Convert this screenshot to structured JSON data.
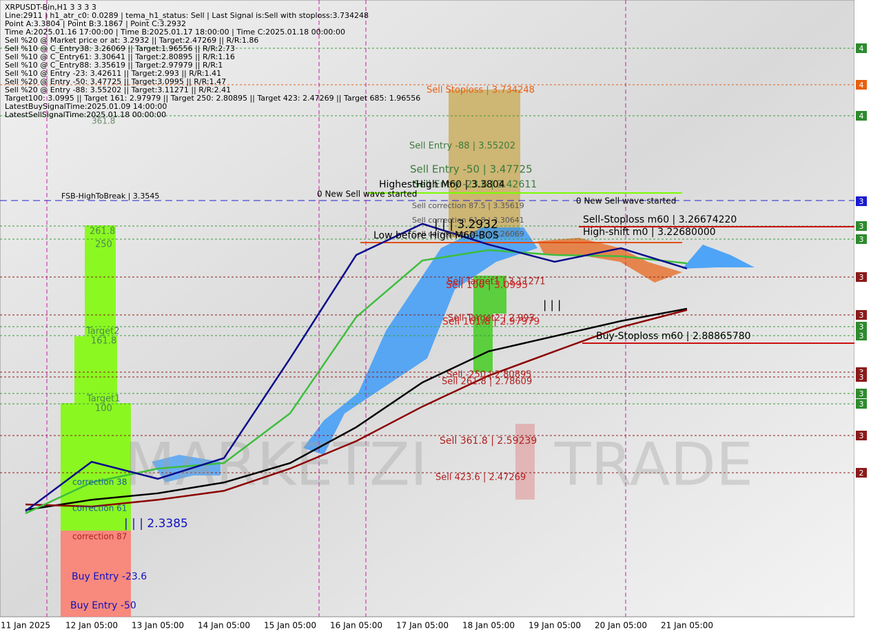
{
  "chart_data": {
    "type": "line",
    "info_lines": [
      "XRPUSDT-Bin,H1  3 3 3 3",
      "Line:2911 | h1_atr_c0: 0.0289 | tema_h1_status: Sell | Last Signal is:Sell with stoploss:3.734248",
      "Point A:3.3804 | Point B:3.1867 | Point C:3.2932",
      "Time A:2025.01.16 17:00:00 | Time B:2025.01.17 18:00:00 | Time C:2025.01.18 00:00:00",
      "Sell %20 @ Market price or at: 3.2932 || Target:2.47269 || R/R:1.86",
      "Sell %10 @ C_Entry38: 3.26069 || Target:1.96556 || R/R:2.73",
      "Sell %10 @ C_Entry61: 3.30641 || Target:2.80895 || R/R:1.16",
      "Sell %10 @ C_Entry88: 3.35619 || Target:2.97979 || R/R:1",
      "Sell %10 @ Entry -23: 3.42611 || Target:2.993 || R/R:1.41",
      "Sell %20 @ Entry -50: 3.47725 || Target:3.0995 || R/R:1.47",
      "Sell %20 @ Entry -88: 3.55202 || Target:3.11271 || R/R:2.41",
      "Target100: 3.0995 || Target 161: 2.97979 || Target 250: 2.80895 || Target 423: 2.47269 || Target 685: 1.96556",
      "LatestBuySignalTime:2025.01.09 14:00:00",
      "LatestSellSignalTime:2025.01.18 00:00:00"
    ],
    "watermark": [
      "MARKETZI",
      "TRADE"
    ],
    "annotations": [
      "361.8",
      "Sell Stoploss | 3.734248",
      "Sell Entry -88 | 3.55202",
      "Sell Entry -50 | 3.47725",
      "Sell Entry -23.6 | 3.42611",
      "HighestHigh   M60 | 3.3804",
      "FSB-HighToBreak | 3.3545",
      "0 New Sell wave started",
      "0 New Sell wave started",
      "Sell correction 87.5 | 3.35619",
      "Sell correction 61.8 | 3.30641",
      "| | | 3.2932",
      "Sell correction 38.2 | 3.26069",
      "Low before High   M60-BOS",
      "Sell-Stoploss m60 | 3.26674220",
      "High-shift m0 | 3.22680000",
      "Sell Target1 | 3.11271",
      "Sell 100 | 3.0995",
      "Sell Target2 | 2.993",
      "Sell 161.8 | 2.97979",
      "| | |",
      "Buy-Stoploss m60 | 2.88865780",
      "Sell -250 | 2.80895",
      "Sell 261.8 | 2.78609",
      "Sell  361.8 | 2.59239",
      "Sell  423.6 | 2.47269",
      "261.8",
      "250",
      "Target2",
      "161.8",
      "Target1",
      "100",
      "correction 38",
      "correction 61",
      "correction 87",
      "| | | 2.3385",
      "Buy Entry -23.6",
      "Buy Entry -50"
    ],
    "badges": [
      4,
      4,
      4,
      3,
      3,
      3,
      3,
      3,
      3,
      3,
      3,
      3,
      3,
      3,
      3,
      2
    ],
    "categories": [
      "11 Jan 2025",
      "12 Jan 05:00",
      "13 Jan 05:00",
      "14 Jan 05:00",
      "15 Jan 05:00",
      "16 Jan 05:00",
      "17 Jan 05:00",
      "18 Jan 05:00",
      "19 Jan 05:00",
      "20 Jan 05:00",
      "21 Jan 05:00"
    ],
    "ylim": [
      2.006,
      4.004
    ],
    "series": [
      {
        "color": "#000000",
        "values": [
          2.352,
          2.385,
          2.406,
          2.441,
          2.504,
          2.62,
          2.765,
          2.866,
          2.915,
          2.964,
          3.004
        ]
      },
      {
        "color": "#8b0000",
        "values": [
          2.37,
          2.363,
          2.385,
          2.414,
          2.486,
          2.575,
          2.687,
          2.787,
          2.866,
          2.944,
          3.0
        ]
      },
      {
        "color": "#3cbe3c",
        "values": [
          2.341,
          2.441,
          2.486,
          2.504,
          2.665,
          2.977,
          3.16,
          3.194,
          3.178,
          3.174,
          3.151
        ]
      },
      {
        "color": "#0a0a8c",
        "values": [
          2.348,
          2.508,
          2.453,
          2.52,
          2.843,
          3.178,
          3.279,
          3.212,
          3.156,
          3.2,
          3.134
        ]
      }
    ]
  }
}
